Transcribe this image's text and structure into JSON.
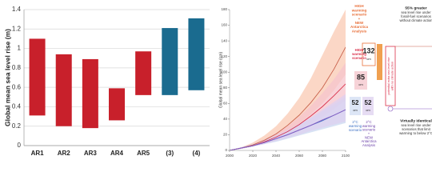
{
  "chart_data": [
    {
      "type": "floating-bar",
      "y_label": "Global mean sea level rise (m)",
      "categories": [
        "AR1",
        "AR2",
        "AR3",
        "AR4",
        "AR5",
        "(3)",
        "(4)"
      ],
      "lows": [
        0.31,
        0.2,
        0.18,
        0.26,
        0.52,
        0.52,
        0.57
      ],
      "highs": [
        1.1,
        0.94,
        0.89,
        0.59,
        0.97,
        1.21,
        1.31
      ],
      "colors": [
        "#c8202b",
        "#c8202b",
        "#c8202b",
        "#c8202b",
        "#c8202b",
        "#1a6b8f",
        "#1a6b8f"
      ],
      "ylim": [
        0,
        1.4
      ],
      "yticks": [
        0,
        0.2,
        0.4,
        0.6,
        0.8,
        1,
        1.2,
        1.4
      ],
      "grid": true
    },
    {
      "type": "line",
      "y_label": "Global mean sea level rise (cm)",
      "x": [
        2000,
        2010,
        2020,
        2030,
        2040,
        2050,
        2060,
        2070,
        2080,
        2090,
        2100
      ],
      "xlim": [
        2000,
        2100
      ],
      "xticks": [
        2000,
        2020,
        2040,
        2060,
        2080,
        2100
      ],
      "ylim": [
        0,
        180
      ],
      "yticks": [
        0,
        20,
        40,
        60,
        80,
        100,
        120,
        140,
        160,
        180
      ],
      "grid": false,
      "series": [
        {
          "color": "#c8604a",
          "band_color": "#f9c9b3",
          "values": [
            0,
            3,
            7,
            13,
            21,
            32,
            45,
            61,
            80,
            104,
            132
          ],
          "lower": [
            0,
            2,
            5,
            10,
            16,
            24,
            34,
            46,
            60,
            77,
            97
          ],
          "upper": [
            0,
            4,
            10,
            19,
            31,
            47,
            67,
            92,
            122,
            152,
            180
          ]
        },
        {
          "color": "#d9304a",
          "band_color": "#f6c4cc",
          "values": [
            0,
            3,
            6,
            11,
            17,
            24,
            33,
            44,
            56,
            70,
            85
          ],
          "lower": [
            0,
            2,
            5,
            9,
            13,
            19,
            26,
            34,
            43,
            53,
            64
          ],
          "upper": [
            0,
            4,
            8,
            14,
            22,
            31,
            43,
            57,
            73,
            91,
            112
          ]
        },
        {
          "color": "#3b6fc4",
          "band_color": "#c9d8f0",
          "values": [
            0,
            3,
            6,
            10,
            15,
            20,
            26,
            32,
            38,
            45,
            52
          ],
          "lower": [
            0,
            2,
            5,
            8,
            11,
            15,
            19,
            23,
            27,
            31,
            35
          ],
          "upper": [
            0,
            4,
            8,
            12,
            18,
            25,
            33,
            41,
            50,
            59,
            68
          ]
        },
        {
          "color": "#8a5cc2",
          "band_color": "#ddd0f0",
          "values": [
            0,
            3,
            6,
            10,
            15,
            20,
            26,
            32,
            39,
            45,
            52
          ],
          "lower": [
            0,
            2,
            5,
            8,
            12,
            16,
            20,
            25,
            29,
            33,
            37
          ],
          "upper": [
            0,
            4,
            8,
            13,
            19,
            26,
            34,
            42,
            52,
            62,
            72
          ]
        }
      ],
      "annotations": [
        {
          "lines": [
            "HIGH",
            "warming",
            "scenario",
            "+",
            "NEW",
            "Antarctica",
            "Analysis"
          ],
          "color": "#e8703a"
        },
        {
          "lines": [
            "132"
          ],
          "color": "#222222"
        },
        {
          "lines": [
            "cm"
          ],
          "color": "#222222"
        },
        {
          "lines": [
            "HIGH",
            "warming",
            "scenario"
          ],
          "color": "#d9304a"
        },
        {
          "lines": [
            "85"
          ],
          "color": "#222222"
        },
        {
          "lines": [
            "cm"
          ],
          "color": "#222222"
        },
        {
          "lines": [
            "52"
          ],
          "color": "#222222"
        },
        {
          "lines": [
            "cm"
          ],
          "color": "#222222"
        },
        {
          "lines": [
            "52"
          ],
          "color": "#222222"
        },
        {
          "lines": [
            "cm"
          ],
          "color": "#222222"
        },
        {
          "lines": [
            "2°C",
            "warming",
            "scenario"
          ],
          "color": "#3b6fc4"
        },
        {
          "lines": [
            "2°C",
            "warming",
            "scenario",
            "+",
            "NEW",
            "Antarctica",
            "Analysis"
          ],
          "color": "#6a3fa8"
        },
        {
          "lines": [
            "55% greater"
          ],
          "color": "#222222"
        },
        {
          "lines": [
            "sea level rise under",
            "fossil-fuel scenarios",
            "without climate action"
          ],
          "color": "#333333"
        },
        {
          "lines": [
            "Virtually identical"
          ],
          "color": "#222222"
        },
        {
          "lines": [
            "sea level rise under",
            "scenarios that limit",
            "warming to below 2°C"
          ],
          "color": "#333333"
        },
        {
          "lines": [
            "potential extra sea level rise",
            "with no climate action"
          ],
          "color": "#d9304a"
        }
      ]
    }
  ]
}
